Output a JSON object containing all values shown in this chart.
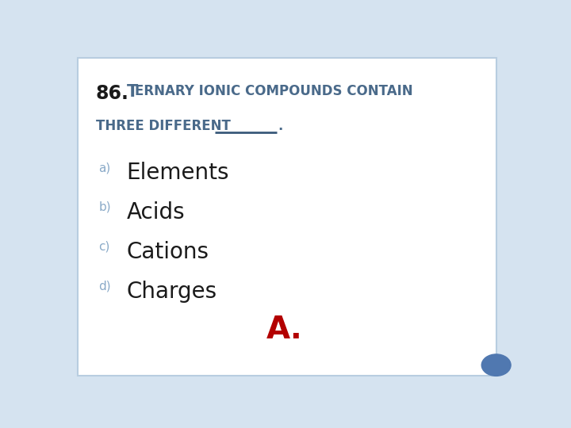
{
  "background_color": "#ffffff",
  "border_color": "#b8cde0",
  "slide_bg": "#d5e3f0",
  "options": [
    {
      "label": "a)",
      "text": "Elements"
    },
    {
      "label": "b)",
      "text": "Acids"
    },
    {
      "label": "c)",
      "text": "Cations"
    },
    {
      "label": "d)",
      "text": "Charges"
    }
  ],
  "answer": "A.",
  "answer_color": "#b30000",
  "label_color": "#8aaac8",
  "text_color": "#1a1a1a",
  "question_color": "#4a6a8a",
  "q_number_color": "#1a1a1a",
  "underline_color": "#3a5a7a",
  "circle_color": "#5078b0",
  "q_num_fontsize": 17,
  "q_text_fontsize": 14,
  "q_small_fontsize": 12,
  "option_fontsize": 20,
  "label_fontsize": 11,
  "answer_fontsize": 28
}
